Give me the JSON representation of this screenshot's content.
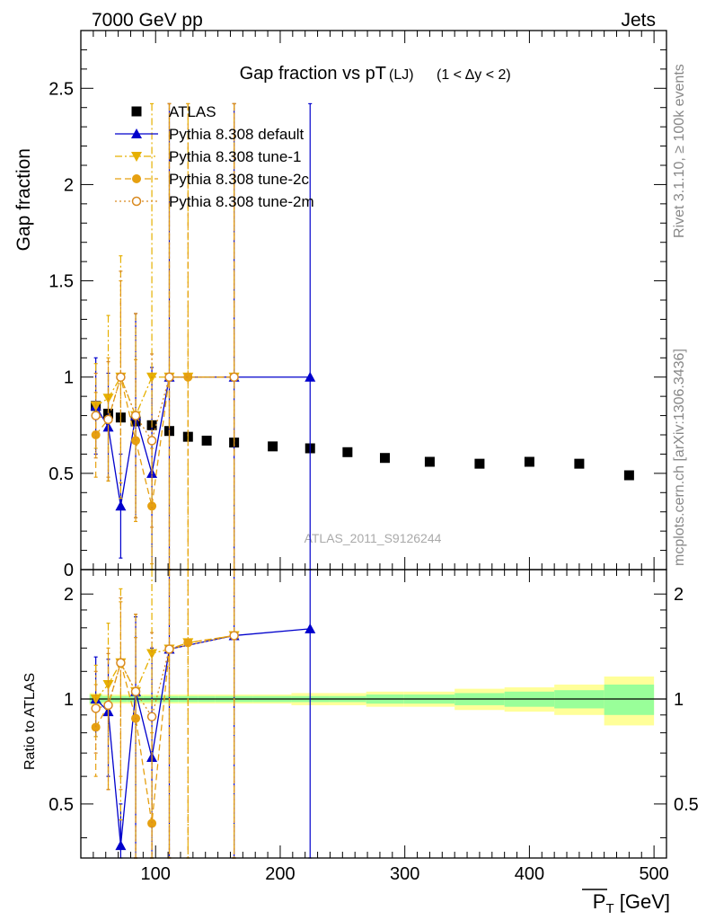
{
  "header": {
    "left": "7000 GeV pp",
    "right": "Jets"
  },
  "side": {
    "rivet": "Rivet 3.1.10, ≥ 100k events",
    "mcplots": "mcplots.cern.ch [arXiv:1306.3436]"
  },
  "watermark": "ATLAS_2011_S9126244",
  "chart_data": [
    {
      "type": "scatter",
      "title": "Gap fraction vs pT (LJ) (1 < Δy < 2)",
      "title_main": "Gap fraction vs pT",
      "title_sub": "(LJ)",
      "title_cond": "(1 < Δy < 2)",
      "ylabel": "Gap fraction",
      "xlabel": "P̅T [GeV]",
      "xlim": [
        40,
        510
      ],
      "ylim": [
        0,
        2.8
      ],
      "grid": false,
      "legend_position": "top-left",
      "y_ticks": [
        "0",
        "0.5",
        "1",
        "1.5",
        "2",
        "2.5"
      ],
      "series": [
        {
          "name": "ATLAS",
          "color": "#000000",
          "marker": "square",
          "points": [
            {
              "x": 52,
              "y": 0.85
            },
            {
              "x": 62,
              "y": 0.81
            },
            {
              "x": 72,
              "y": 0.79
            },
            {
              "x": 84,
              "y": 0.77
            },
            {
              "x": 97,
              "y": 0.75
            },
            {
              "x": 111,
              "y": 0.72
            },
            {
              "x": 126,
              "y": 0.69
            },
            {
              "x": 141,
              "y": 0.67
            },
            {
              "x": 163,
              "y": 0.66
            },
            {
              "x": 194,
              "y": 0.64
            },
            {
              "x": 224,
              "y": 0.63
            },
            {
              "x": 254,
              "y": 0.61
            },
            {
              "x": 284,
              "y": 0.58
            },
            {
              "x": 320,
              "y": 0.56
            },
            {
              "x": 360,
              "y": 0.55
            },
            {
              "x": 400,
              "y": 0.56
            },
            {
              "x": 440,
              "y": 0.55
            },
            {
              "x": 480,
              "y": 0.49
            }
          ]
        },
        {
          "name": "Pythia 8.308 default",
          "color": "#0000cc",
          "marker": "triangle-up",
          "line": "solid",
          "points": [
            {
              "x": 52,
              "y": 0.85,
              "err": 0.25
            },
            {
              "x": 62,
              "y": 0.74,
              "err": 0.28
            },
            {
              "x": 72,
              "y": 0.33,
              "err": 0.27
            },
            {
              "x": 84,
              "y": 0.8,
              "err": 0.53
            },
            {
              "x": 97,
              "y": 0.5,
              "err": 0.55
            },
            {
              "x": 111,
              "y": 1.0,
              "err": 1.42
            },
            {
              "x": 163,
              "y": 1.0,
              "err": 1.42
            },
            {
              "x": 224,
              "y": 1.0,
              "err": 1.42
            }
          ]
        },
        {
          "name": "Pythia 8.308 tune-1",
          "color": "#e6b000",
          "marker": "triangle-down",
          "line": "dash-dot",
          "points": [
            {
              "x": 52,
              "y": 0.85,
              "err": 0.22
            },
            {
              "x": 62,
              "y": 0.89,
              "err": 0.43
            },
            {
              "x": 72,
              "y": 1.0,
              "err": 0.63
            },
            {
              "x": 84,
              "y": 0.8,
              "err": 0.53
            },
            {
              "x": 97,
              "y": 1.0,
              "err": 1.42
            },
            {
              "x": 111,
              "y": 1.0,
              "err": 1.42
            },
            {
              "x": 126,
              "y": 1.0,
              "err": 1.42
            },
            {
              "x": 163,
              "y": 1.0,
              "err": 1.42
            }
          ]
        },
        {
          "name": "Pythia 8.308 tune-2c",
          "color": "#e6a010",
          "marker": "circle",
          "line": "dashed",
          "points": [
            {
              "x": 52,
              "y": 0.7,
              "err": 0.22
            },
            {
              "x": 62,
              "y": 0.78,
              "err": 0.32
            },
            {
              "x": 72,
              "y": 1.0,
              "err": 0.5
            },
            {
              "x": 84,
              "y": 0.67,
              "err": 0.42
            },
            {
              "x": 97,
              "y": 0.33,
              "err": 0.3
            },
            {
              "x": 111,
              "y": 1.0,
              "err": 1.42
            },
            {
              "x": 126,
              "y": 1.0,
              "err": 1.42
            },
            {
              "x": 163,
              "y": 1.0,
              "err": 1.42
            }
          ]
        },
        {
          "name": "Pythia 8.308 tune-2m",
          "color": "#d98a20",
          "marker": "open-circle",
          "line": "dotted",
          "points": [
            {
              "x": 52,
              "y": 0.8,
              "err": 0.22
            },
            {
              "x": 62,
              "y": 0.78,
              "err": 0.3
            },
            {
              "x": 72,
              "y": 1.0,
              "err": 0.55
            },
            {
              "x": 84,
              "y": 0.8,
              "err": 0.53
            },
            {
              "x": 97,
              "y": 0.67,
              "err": 0.45
            },
            {
              "x": 111,
              "y": 1.0,
              "err": 1.42
            },
            {
              "x": 163,
              "y": 1.0,
              "err": 1.42
            }
          ]
        }
      ]
    },
    {
      "type": "scatter",
      "title": "",
      "ylabel": "Ratio to ATLAS",
      "xlabel": "P̅T [GeV]",
      "xlim": [
        40,
        510
      ],
      "ylim": [
        0.35,
        2.35
      ],
      "y_scale": "log",
      "x_ticks": [
        "100",
        "200",
        "300",
        "400",
        "500"
      ],
      "y_ticks": [
        "0.5",
        "1",
        "2"
      ],
      "reference_line": 1,
      "uncertainty_bands": {
        "x_edges": [
          47,
          57,
          67,
          77,
          90,
          104,
          118,
          134,
          148,
          178,
          209,
          239,
          269,
          299,
          340,
          380,
          420,
          460,
          500
        ],
        "inner_half_width": [
          0.03,
          0.02,
          0.02,
          0.02,
          0.02,
          0.02,
          0.02,
          0.02,
          0.02,
          0.02,
          0.02,
          0.02,
          0.03,
          0.03,
          0.04,
          0.05,
          0.06,
          0.1
        ],
        "outer_half_width": [
          0.04,
          0.03,
          0.03,
          0.03,
          0.03,
          0.03,
          0.03,
          0.03,
          0.03,
          0.03,
          0.04,
          0.04,
          0.05,
          0.05,
          0.07,
          0.08,
          0.1,
          0.16
        ],
        "inner_color": "#99ff99",
        "outer_color": "#ffff99"
      },
      "series": [
        {
          "name": "Pythia 8.308 default",
          "color": "#0000cc",
          "marker": "triangle-up",
          "line": "solid",
          "points": [
            {
              "x": 52,
              "y": 1.0,
              "lo": 0.78,
              "hi": 1.32
            },
            {
              "x": 62,
              "y": 0.92,
              "lo": 0.6,
              "hi": 1.3
            },
            {
              "x": 72,
              "y": 0.38,
              "lo": 0.35,
              "hi": 0.5
            },
            {
              "x": 84,
              "y": 1.05,
              "lo": 0.35,
              "hi": 1.72
            },
            {
              "x": 97,
              "y": 0.68,
              "lo": 0.35,
              "hi": 1.4
            },
            {
              "x": 111,
              "y": 1.39,
              "lo": 0.35,
              "hi": 2.35
            },
            {
              "x": 163,
              "y": 1.52,
              "lo": 0.35,
              "hi": 2.35
            },
            {
              "x": 224,
              "y": 1.59,
              "lo": 0.35,
              "hi": 2.35
            }
          ]
        },
        {
          "name": "Pythia 8.308 tune-1",
          "color": "#e6b000",
          "marker": "triangle-down",
          "line": "dash-dot",
          "points": [
            {
              "x": 52,
              "y": 1.0,
              "lo": 0.78,
              "hi": 1.25
            },
            {
              "x": 62,
              "y": 1.1,
              "lo": 0.55,
              "hi": 1.65
            },
            {
              "x": 72,
              "y": 1.27,
              "lo": 0.45,
              "hi": 2.07
            },
            {
              "x": 84,
              "y": 1.05,
              "lo": 0.35,
              "hi": 1.75
            },
            {
              "x": 97,
              "y": 1.35,
              "lo": 0.35,
              "hi": 2.35
            },
            {
              "x": 111,
              "y": 1.39,
              "lo": 0.35,
              "hi": 2.35
            },
            {
              "x": 126,
              "y": 1.45,
              "lo": 0.35,
              "hi": 2.35
            },
            {
              "x": 163,
              "y": 1.52,
              "lo": 0.35,
              "hi": 2.35
            }
          ]
        },
        {
          "name": "Pythia 8.308 tune-2c",
          "color": "#e6a010",
          "marker": "circle",
          "line": "dashed",
          "points": [
            {
              "x": 52,
              "y": 0.83,
              "lo": 0.6,
              "hi": 1.1
            },
            {
              "x": 62,
              "y": 0.96,
              "lo": 0.55,
              "hi": 1.4
            },
            {
              "x": 72,
              "y": 1.27,
              "lo": 0.6,
              "hi": 1.9
            },
            {
              "x": 84,
              "y": 0.88,
              "lo": 0.35,
              "hi": 1.5
            },
            {
              "x": 97,
              "y": 0.44,
              "lo": 0.35,
              "hi": 0.8
            },
            {
              "x": 111,
              "y": 1.39,
              "lo": 0.35,
              "hi": 2.35
            },
            {
              "x": 126,
              "y": 1.45,
              "lo": 0.35,
              "hi": 2.35
            },
            {
              "x": 163,
              "y": 1.52,
              "lo": 0.35,
              "hi": 2.35
            }
          ]
        },
        {
          "name": "Pythia 8.308 tune-2m",
          "color": "#d98a20",
          "marker": "open-circle",
          "line": "dotted",
          "points": [
            {
              "x": 52,
              "y": 0.94,
              "lo": 0.7,
              "hi": 1.2
            },
            {
              "x": 62,
              "y": 0.96,
              "lo": 0.55,
              "hi": 1.35
            },
            {
              "x": 72,
              "y": 1.27,
              "lo": 0.55,
              "hi": 1.95
            },
            {
              "x": 84,
              "y": 1.05,
              "lo": 0.35,
              "hi": 1.75
            },
            {
              "x": 97,
              "y": 0.89,
              "lo": 0.35,
              "hi": 1.55
            },
            {
              "x": 111,
              "y": 1.39,
              "lo": 0.35,
              "hi": 2.35
            },
            {
              "x": 163,
              "y": 1.52,
              "lo": 0.35,
              "hi": 2.35
            }
          ]
        }
      ]
    }
  ]
}
